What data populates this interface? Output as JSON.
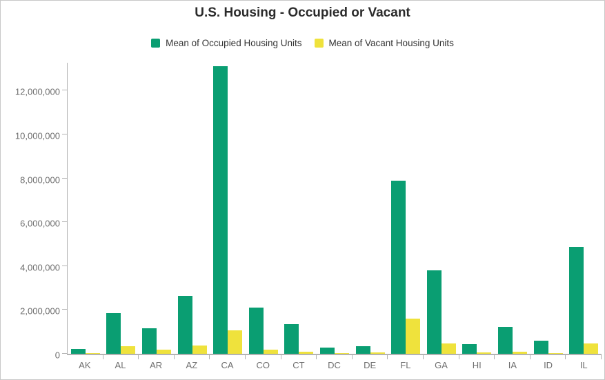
{
  "header": {
    "title": "U.S. Housing - Occupied or Vacant"
  },
  "legend": {
    "items": [
      {
        "label": "Mean of Occupied Housing Units",
        "color": "#0a9e72"
      },
      {
        "label": "Mean of Vacant Housing Units",
        "color": "#efe23c"
      }
    ]
  },
  "chart_data": {
    "type": "bar",
    "title": "U.S. Housing - Occupied or Vacant",
    "categories": [
      "AK",
      "AL",
      "AR",
      "AZ",
      "CA",
      "CO",
      "CT",
      "DC",
      "DE",
      "FL",
      "GA",
      "HI",
      "IA",
      "ID",
      "IL"
    ],
    "series": [
      {
        "name": "Mean of Occupied Housing Units",
        "color": "#0a9e72",
        "values": [
          230000,
          1860000,
          1150000,
          2640000,
          13110000,
          2100000,
          1350000,
          270000,
          340000,
          7900000,
          3810000,
          450000,
          1230000,
          600000,
          4890000
        ]
      },
      {
        "name": "Mean of Vacant Housing Units",
        "color": "#efe23c",
        "values": [
          40000,
          360000,
          180000,
          370000,
          1060000,
          180000,
          105000,
          25000,
          60000,
          1590000,
          460000,
          70000,
          105000,
          45000,
          470000
        ]
      }
    ],
    "xlabel": "",
    "ylabel": "",
    "y_ticks": [
      0,
      2000000,
      4000000,
      6000000,
      8000000,
      10000000,
      12000000
    ],
    "y_tick_labels": [
      "0",
      "2,000,000",
      "4,000,000",
      "6,000,000",
      "8,000,000",
      "10,000,000",
      "12,000,000"
    ],
    "ylim": [
      0,
      13333000
    ],
    "grid": false,
    "legend_position": "top"
  },
  "colors": {
    "axis": "#b3b3b3",
    "tick_label": "#6e6e6e",
    "title_text": "#2b2b2b",
    "legend_text": "#333333",
    "border": "#c8c8c8",
    "occupied": "#0a9e72",
    "vacant": "#efe23c"
  }
}
